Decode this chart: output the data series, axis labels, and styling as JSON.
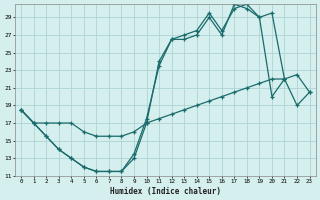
{
  "xlabel": "Humidex (Indice chaleur)",
  "bg_color": "#d5eeee",
  "grid_color": "#aed4d4",
  "line_color": "#1a6b6b",
  "xlim": [
    -0.5,
    23.5
  ],
  "ylim": [
    11,
    30.5
  ],
  "yticks": [
    11,
    13,
    15,
    17,
    19,
    21,
    23,
    25,
    27,
    29
  ],
  "xticks": [
    0,
    1,
    2,
    3,
    4,
    5,
    6,
    7,
    8,
    9,
    10,
    11,
    12,
    13,
    14,
    15,
    16,
    17,
    18,
    19,
    20,
    21,
    22,
    23
  ],
  "line1_x": [
    0,
    1,
    2,
    3,
    4,
    5,
    6,
    7,
    8,
    9,
    10,
    11,
    12,
    13,
    14,
    15,
    16,
    17,
    18,
    19,
    20,
    21,
    22,
    23
  ],
  "line1_y": [
    18.5,
    17,
    15.5,
    14,
    13,
    12,
    11.5,
    11.5,
    11.5,
    13.5,
    17.5,
    23.5,
    26.5,
    26.5,
    27,
    29,
    27,
    30.5,
    30,
    29,
    20,
    22,
    19,
    20.5
  ],
  "line2_x": [
    0,
    1,
    2,
    3,
    4,
    5,
    6,
    7,
    8,
    9,
    10,
    11,
    12,
    13,
    14,
    15,
    16,
    17,
    18,
    19,
    20,
    21
  ],
  "line2_y": [
    18.5,
    17,
    15.5,
    14,
    13,
    12,
    11.5,
    11.5,
    11.5,
    13,
    17,
    24,
    26.5,
    27,
    27.5,
    29.5,
    27.5,
    30,
    30.5,
    29,
    29.5,
    22
  ],
  "line3_x": [
    0,
    1,
    2,
    3,
    4,
    5,
    6,
    7,
    8,
    9,
    10,
    11,
    12,
    13,
    14,
    15,
    16,
    17,
    18,
    19,
    20,
    21,
    22,
    23
  ],
  "line3_y": [
    18.5,
    17,
    17,
    17,
    17,
    16,
    15.5,
    15.5,
    15.5,
    16,
    17,
    17.5,
    18,
    18.5,
    19,
    19.5,
    20,
    20.5,
    21,
    21.5,
    22,
    22,
    22.5,
    20.5
  ]
}
